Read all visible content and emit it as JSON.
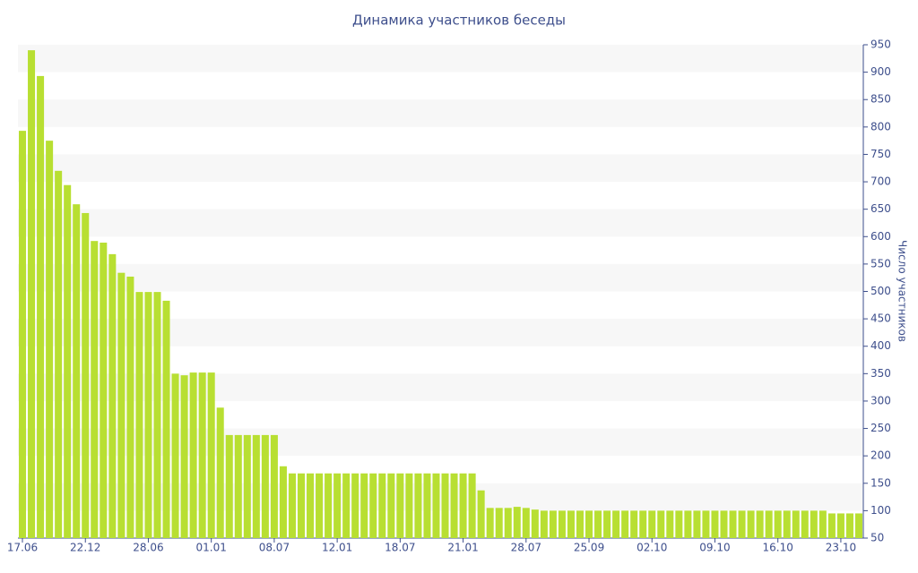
{
  "chart_data": {
    "type": "bar",
    "title": "Динамика участников беседы",
    "y_axis_label": "Число участников",
    "categories": [
      "17.06",
      null,
      null,
      null,
      null,
      null,
      null,
      "22.12",
      null,
      null,
      null,
      null,
      null,
      null,
      "28.06",
      null,
      null,
      null,
      null,
      null,
      null,
      "01.01",
      null,
      null,
      null,
      null,
      null,
      null,
      "08.07",
      null,
      null,
      null,
      null,
      null,
      null,
      "12.01",
      null,
      null,
      null,
      null,
      null,
      null,
      "18.07",
      null,
      null,
      null,
      null,
      null,
      null,
      "21.01",
      null,
      null,
      null,
      null,
      null,
      null,
      "28.07",
      null,
      null,
      null,
      null,
      null,
      null,
      "25.09",
      null,
      null,
      null,
      null,
      null,
      null,
      "02.10",
      null,
      null,
      null,
      null,
      null,
      null,
      "09.10",
      null,
      null,
      null,
      null,
      null,
      null,
      "16.10",
      null,
      null,
      null,
      null,
      null,
      null,
      "23.10",
      null,
      null
    ],
    "values": [
      793,
      940,
      893,
      775,
      720,
      694,
      659,
      643,
      592,
      589,
      568,
      534,
      527,
      499,
      499,
      499,
      483,
      350,
      347,
      352,
      352,
      352,
      288,
      238,
      238,
      238,
      238,
      238,
      238,
      181,
      168,
      168,
      168,
      168,
      168,
      168,
      168,
      168,
      168,
      168,
      168,
      168,
      168,
      168,
      168,
      168,
      168,
      168,
      168,
      168,
      168,
      137,
      105,
      105,
      105,
      107,
      105,
      102,
      100,
      100,
      100,
      100,
      100,
      100,
      100,
      100,
      100,
      100,
      100,
      100,
      100,
      100,
      100,
      100,
      100,
      100,
      100,
      100,
      100,
      100,
      100,
      100,
      100,
      100,
      100,
      100,
      100,
      100,
      100,
      100,
      95,
      95,
      95,
      95
    ],
    "color": "#b8df32",
    "ylim": [
      50,
      950
    ],
    "yticks": [
      50,
      100,
      150,
      200,
      250,
      300,
      350,
      400,
      450,
      500,
      550,
      600,
      650,
      700,
      750,
      800,
      850,
      900,
      950
    ],
    "y_axis_side": "right",
    "grid": true
  }
}
